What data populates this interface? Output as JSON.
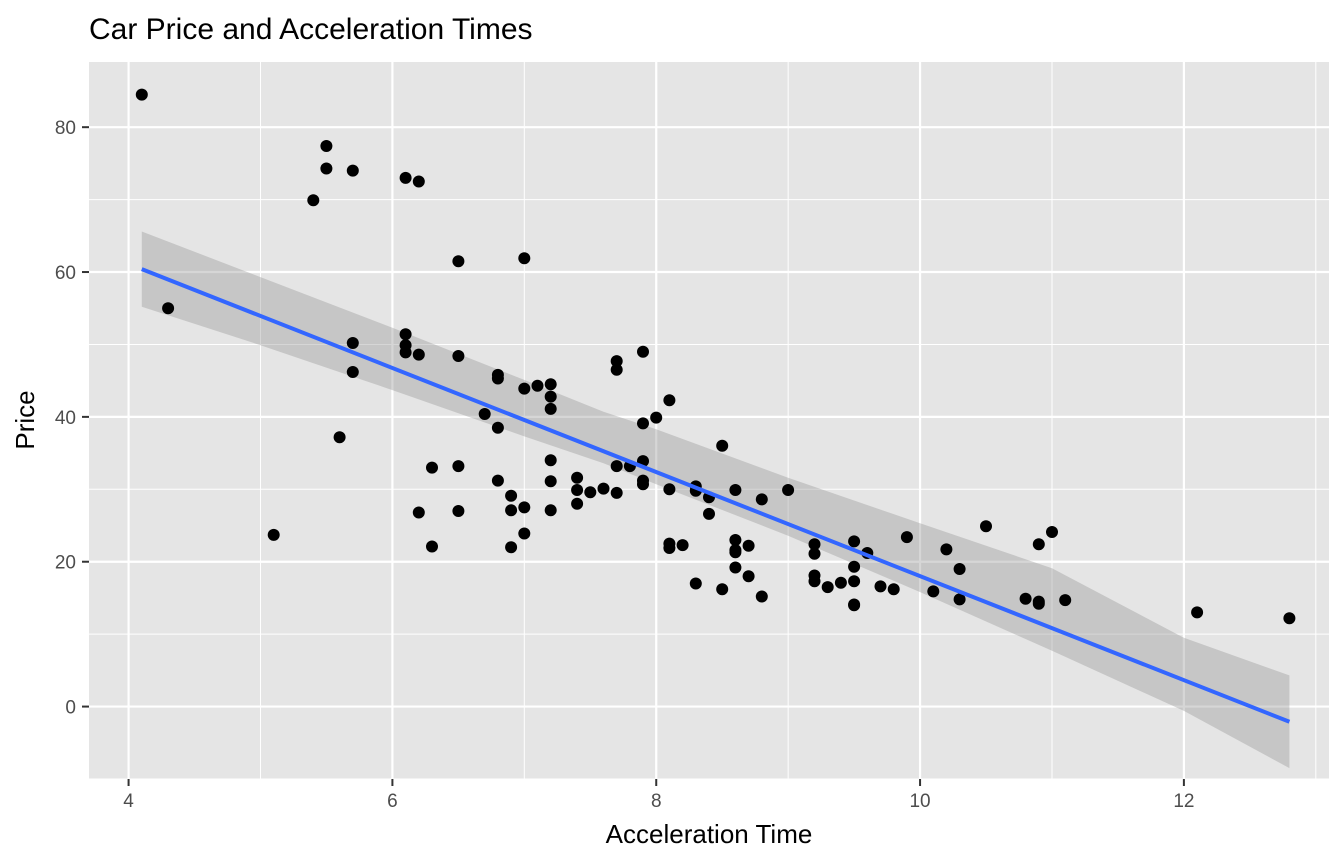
{
  "chart_data": {
    "type": "scatter",
    "title": "Car Price and Acceleration Times",
    "xlabel": "Acceleration Time",
    "ylabel": "Price",
    "xlim": [
      3.7,
      13.1
    ],
    "ylim": [
      -10,
      89
    ],
    "xticks": [
      4,
      6,
      8,
      10,
      12
    ],
    "yticks": [
      0,
      20,
      40,
      60,
      80
    ],
    "xminor": [
      5,
      7,
      9,
      11,
      13
    ],
    "yminor": [
      -10,
      10,
      30,
      50,
      70
    ],
    "grid": true,
    "panel_background": "#e5e5e5",
    "grid_color": "#ffffff",
    "point_color": "#000000",
    "trend_color": "#3366ff",
    "band_color": "#999999",
    "points": [
      [
        4.1,
        84.5
      ],
      [
        4.3,
        55.0
      ],
      [
        5.1,
        23.7
      ],
      [
        5.4,
        69.9
      ],
      [
        5.5,
        77.4
      ],
      [
        5.5,
        74.3
      ],
      [
        5.6,
        37.2
      ],
      [
        5.7,
        74.0
      ],
      [
        5.7,
        50.2
      ],
      [
        5.7,
        46.2
      ],
      [
        6.1,
        73.0
      ],
      [
        6.1,
        51.4
      ],
      [
        6.1,
        49.9
      ],
      [
        6.1,
        48.9
      ],
      [
        6.2,
        72.5
      ],
      [
        6.2,
        48.6
      ],
      [
        6.2,
        26.8
      ],
      [
        6.3,
        33.0
      ],
      [
        6.3,
        22.1
      ],
      [
        6.5,
        61.5
      ],
      [
        6.5,
        48.4
      ],
      [
        6.5,
        33.2
      ],
      [
        6.5,
        27.0
      ],
      [
        6.7,
        40.4
      ],
      [
        6.8,
        45.8
      ],
      [
        6.8,
        45.3
      ],
      [
        6.8,
        38.5
      ],
      [
        6.8,
        31.2
      ],
      [
        6.9,
        29.1
      ],
      [
        6.9,
        27.1
      ],
      [
        6.9,
        22.0
      ],
      [
        7.0,
        61.9
      ],
      [
        7.0,
        43.9
      ],
      [
        7.0,
        27.5
      ],
      [
        7.0,
        23.9
      ],
      [
        7.1,
        44.3
      ],
      [
        7.2,
        44.5
      ],
      [
        7.2,
        42.8
      ],
      [
        7.2,
        41.1
      ],
      [
        7.2,
        34.0
      ],
      [
        7.2,
        31.1
      ],
      [
        7.2,
        27.1
      ],
      [
        7.4,
        31.6
      ],
      [
        7.4,
        29.9
      ],
      [
        7.4,
        28.0
      ],
      [
        7.5,
        29.6
      ],
      [
        7.6,
        30.1
      ],
      [
        7.7,
        47.7
      ],
      [
        7.7,
        46.5
      ],
      [
        7.7,
        33.2
      ],
      [
        7.7,
        29.5
      ],
      [
        7.8,
        33.2
      ],
      [
        7.9,
        49.0
      ],
      [
        7.9,
        39.1
      ],
      [
        7.9,
        33.9
      ],
      [
        7.9,
        31.2
      ],
      [
        7.9,
        30.7
      ],
      [
        8.0,
        39.9
      ],
      [
        8.1,
        42.3
      ],
      [
        8.1,
        30.0
      ],
      [
        8.1,
        22.5
      ],
      [
        8.1,
        21.9
      ],
      [
        8.2,
        22.3
      ],
      [
        8.3,
        30.4
      ],
      [
        8.3,
        29.8
      ],
      [
        8.3,
        17.0
      ],
      [
        8.4,
        28.9
      ],
      [
        8.4,
        26.6
      ],
      [
        8.5,
        36.0
      ],
      [
        8.5,
        16.2
      ],
      [
        8.6,
        29.9
      ],
      [
        8.6,
        23.0
      ],
      [
        8.6,
        21.6
      ],
      [
        8.6,
        21.3
      ],
      [
        8.6,
        19.2
      ],
      [
        8.7,
        22.2
      ],
      [
        8.7,
        18.0
      ],
      [
        8.8,
        28.6
      ],
      [
        8.8,
        15.2
      ],
      [
        9.0,
        29.9
      ],
      [
        9.2,
        22.4
      ],
      [
        9.2,
        21.1
      ],
      [
        9.2,
        18.1
      ],
      [
        9.2,
        17.3
      ],
      [
        9.3,
        16.5
      ],
      [
        9.4,
        17.1
      ],
      [
        9.5,
        22.8
      ],
      [
        9.5,
        19.3
      ],
      [
        9.5,
        17.3
      ],
      [
        9.5,
        14.1
      ],
      [
        9.5,
        14.0
      ],
      [
        9.6,
        21.2
      ],
      [
        9.7,
        16.6
      ],
      [
        9.8,
        16.2
      ],
      [
        9.9,
        23.4
      ],
      [
        10.1,
        15.9
      ],
      [
        10.2,
        21.7
      ],
      [
        10.3,
        19.0
      ],
      [
        10.3,
        14.8
      ],
      [
        10.5,
        24.9
      ],
      [
        10.8,
        14.9
      ],
      [
        10.9,
        22.4
      ],
      [
        10.9,
        14.5
      ],
      [
        10.9,
        14.2
      ],
      [
        11.0,
        24.1
      ],
      [
        11.1,
        14.7
      ],
      [
        12.1,
        13.0
      ],
      [
        12.8,
        12.2
      ]
    ],
    "trend": {
      "x": [
        4.1,
        12.8
      ],
      "y": [
        60.4,
        -2.1
      ]
    },
    "confidence_band": {
      "x": [
        4.1,
        5.0,
        6.0,
        7.0,
        7.6,
        8.0,
        9.0,
        10.0,
        11.0,
        12.0,
        12.8
      ],
      "lower": [
        55.2,
        49.9,
        43.7,
        37.3,
        33.6,
        30.7,
        23.6,
        15.8,
        7.7,
        -0.6,
        -8.5
      ],
      "upper": [
        65.6,
        59.3,
        52.3,
        45.1,
        40.7,
        38.3,
        31.6,
        25.3,
        19.1,
        9.5,
        4.3
      ]
    }
  }
}
